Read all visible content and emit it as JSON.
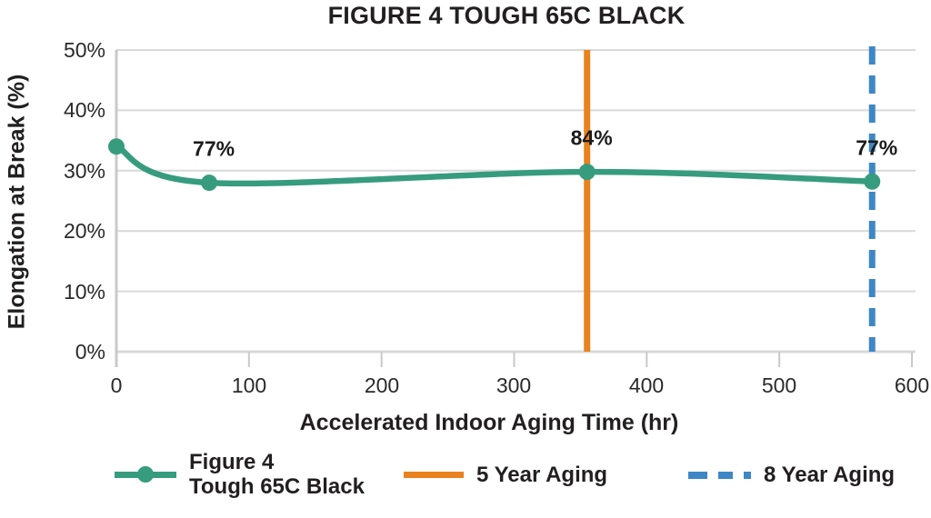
{
  "chart_data": {
    "type": "line",
    "title": "FIGURE 4 TOUGH 65C BLACK",
    "xlabel": "Accelerated Indoor Aging Time (hr)",
    "ylabel": "Elongation at Break (%)",
    "xlim": [
      0,
      600
    ],
    "ylim": [
      0,
      50
    ],
    "xticks": [
      "0",
      "100",
      "200",
      "300",
      "400",
      "500",
      "600"
    ],
    "yticks": [
      "50%",
      "40%",
      "30%",
      "20%",
      "10%",
      "0%"
    ],
    "grid": "horizontal-only",
    "legend_position": "bottom",
    "series": [
      {
        "name": "Figure 4 Tough 65C Black",
        "color": "#369c7d",
        "marker": "circle",
        "smooth": true,
        "x": [
          0,
          70,
          355,
          570
        ],
        "y": [
          34,
          28,
          29.8,
          28.2
        ],
        "point_labels": [
          "",
          "77%",
          "84%",
          "77%"
        ]
      }
    ],
    "vlines": [
      {
        "name": "5 Year Aging",
        "x": 355,
        "color": "#e8821e",
        "style": "solid"
      },
      {
        "name": "8 Year Aging",
        "x": 570,
        "color": "#3e87c6",
        "style": "dashed"
      }
    ],
    "legend": {
      "series_label_line1": "Figure 4",
      "series_label_line2": "Tough 65C Black",
      "vline1_label": "5 Year Aging",
      "vline2_label": "8 Year Aging"
    },
    "colors": {
      "series_green": "#369c7d",
      "vline_orange": "#e8821e",
      "vline_blue": "#3e87c6",
      "gridline": "#d9d9d9",
      "axis": "#c9c9c9",
      "text_dark": "#231f20"
    }
  }
}
